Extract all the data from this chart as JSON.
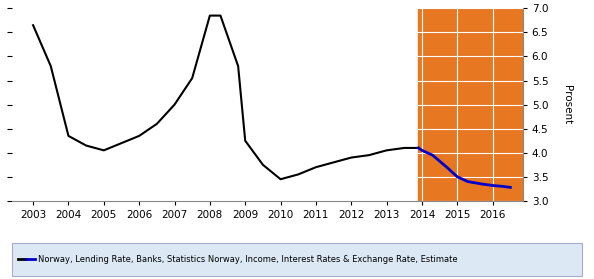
{
  "black_line_x": [
    2003,
    2003.5,
    2004,
    2004.5,
    2005,
    2005.5,
    2006,
    2006.5,
    2007,
    2007.5,
    2008,
    2008.3,
    2008.8,
    2009,
    2009.5,
    2010,
    2010.5,
    2011,
    2011.5,
    2012,
    2012.5,
    2013,
    2013.5,
    2013.9
  ],
  "black_line_y": [
    6.65,
    5.8,
    4.35,
    4.15,
    4.05,
    4.2,
    4.35,
    4.6,
    5.0,
    5.55,
    6.85,
    6.85,
    5.8,
    4.25,
    3.75,
    3.45,
    3.55,
    3.7,
    3.8,
    3.9,
    3.95,
    4.05,
    4.1,
    4.1
  ],
  "blue_line_x": [
    2013.9,
    2014.0,
    2014.3,
    2014.7,
    2015.0,
    2015.3,
    2015.7,
    2016.0,
    2016.3,
    2016.5
  ],
  "blue_line_y": [
    4.1,
    4.05,
    3.95,
    3.7,
    3.5,
    3.4,
    3.35,
    3.32,
    3.3,
    3.28
  ],
  "orange_bg_start": 2013.9,
  "orange_bg_end": 2016.85,
  "orange_color": "#E87722",
  "ylim": [
    3.0,
    7.0
  ],
  "xlim": [
    2002.4,
    2016.85
  ],
  "yticks": [
    3.0,
    3.5,
    4.0,
    4.5,
    5.0,
    5.5,
    6.0,
    6.5,
    7.0
  ],
  "xticks": [
    2003,
    2004,
    2005,
    2006,
    2007,
    2008,
    2009,
    2010,
    2011,
    2012,
    2013,
    2014,
    2015,
    2016
  ],
  "ylabel_right": "Prosent",
  "grid_color": "#ffffff",
  "bg_color": "#ffffff",
  "plot_bg_color": "#ffffff",
  "legend_text": "Norway, Lending Rate, Banks, Statistics Norway, Income, Interest Rates & Exchange Rate, Estimate",
  "legend_black_color": "#000000",
  "legend_blue_color": "#0000cc",
  "legend_box_color": "#dce9f5"
}
